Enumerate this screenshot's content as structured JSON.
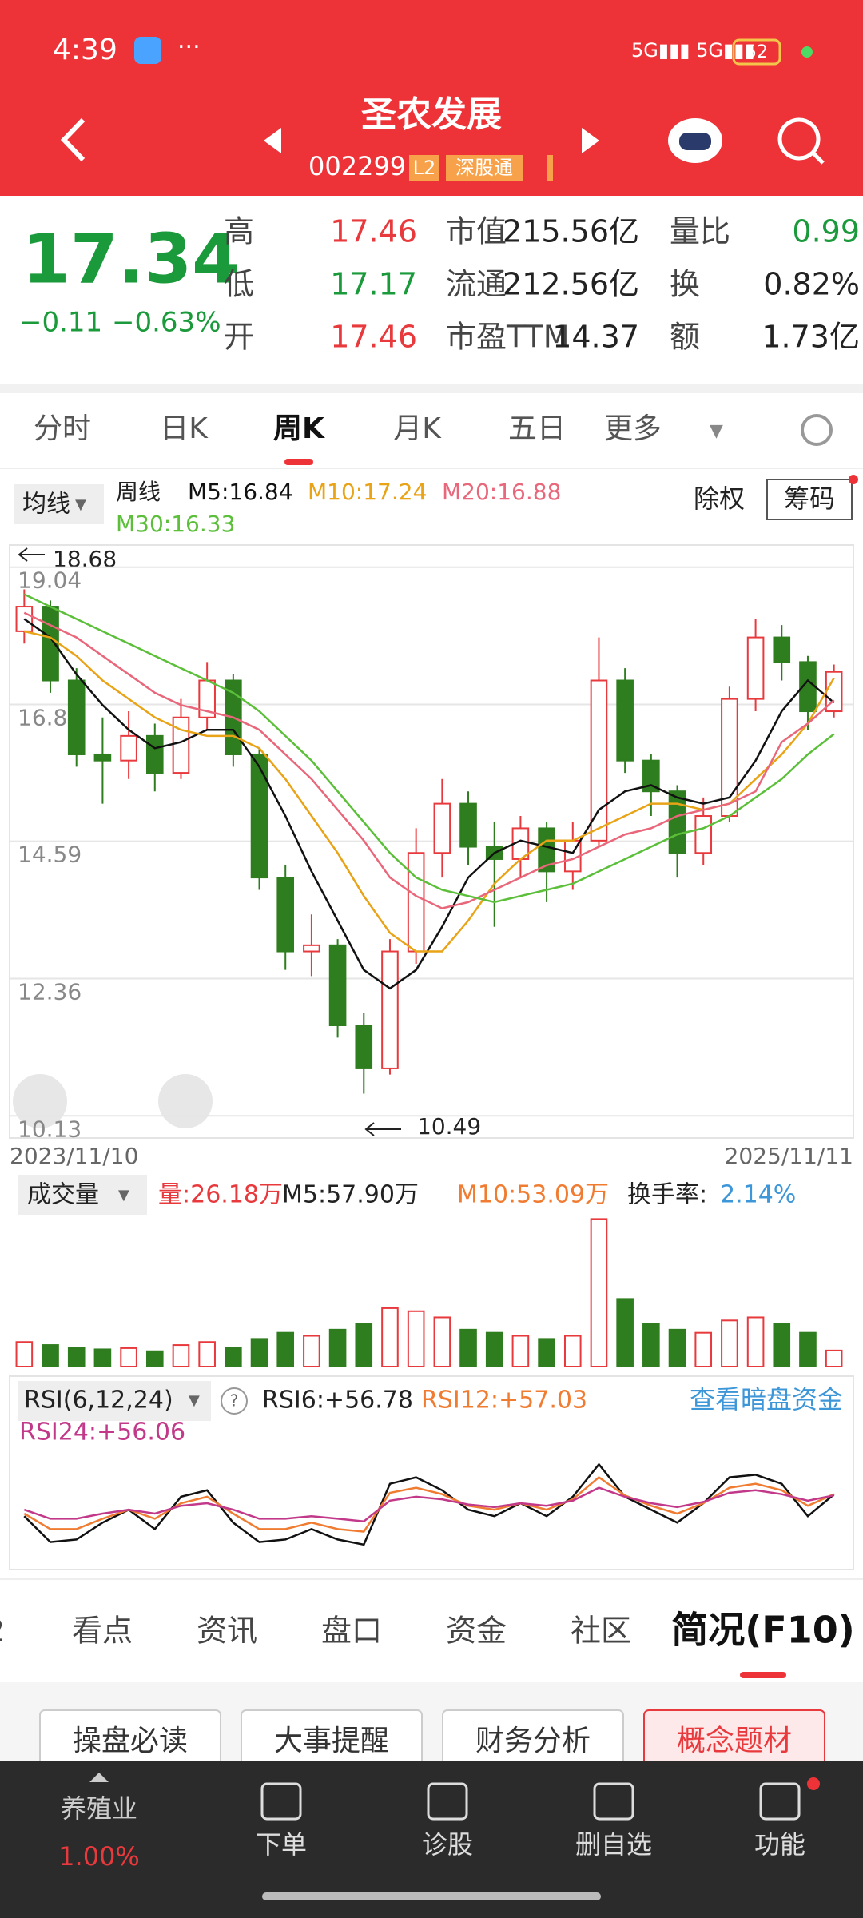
{
  "status_bar": {
    "time": "4:39",
    "battery": "52"
  },
  "header": {
    "name": "圣农发展",
    "code": "002299",
    "badges": [
      "L2",
      "深股通"
    ]
  },
  "quote": {
    "price": "17.34",
    "change": "−0.11",
    "change_pct": "−0.63%",
    "stats": [
      [
        "高",
        "17.46",
        "市值",
        "215.56亿",
        "量比",
        "0.99"
      ],
      [
        "低",
        "17.17",
        "流通",
        "212.56亿",
        "换",
        "0.82%"
      ],
      [
        "开",
        "17.46",
        "市盈TTM",
        "14.37",
        "额",
        "1.73亿"
      ]
    ]
  },
  "period_tabs": [
    "分时",
    "日K",
    "周K",
    "月K",
    "五日",
    "更多"
  ],
  "chart_data": [
    {
      "type": "candlestick",
      "ma_button": "均线",
      "period": "周线",
      "buttons": [
        "除权",
        "筹码"
      ],
      "ylim": [
        9.77,
        19.4
      ],
      "yticks": [
        19.04,
        16.81,
        14.59,
        12.36,
        10.13
      ],
      "grid": true,
      "x_labels": [
        "2023/11/10",
        "2025/11/11"
      ],
      "annotations": [
        "18.68",
        "10.49"
      ],
      "up_color": "#e8393d",
      "down_color": "#2e7d1e",
      "open": [
        18.0,
        18.4,
        17.2,
        16.0,
        15.9,
        16.3,
        15.7,
        16.6,
        17.2,
        16.0,
        14.0,
        12.8,
        12.9,
        11.6,
        10.9,
        12.8,
        14.4,
        15.2,
        14.5,
        14.3,
        14.8,
        14.1,
        14.6,
        17.2,
        15.9,
        15.4,
        14.4,
        15.0,
        16.9,
        17.9,
        17.5,
        16.7
      ],
      "high": [
        18.68,
        18.5,
        17.4,
        16.6,
        16.7,
        16.5,
        16.9,
        17.5,
        17.3,
        16.1,
        14.2,
        13.4,
        13.0,
        11.8,
        13.0,
        14.8,
        15.6,
        15.4,
        14.9,
        15.0,
        14.9,
        14.9,
        17.9,
        17.4,
        16.0,
        15.5,
        15.3,
        17.1,
        18.2,
        18.1,
        17.6,
        17.46
      ],
      "low": [
        17.8,
        17.0,
        15.8,
        15.2,
        15.6,
        15.4,
        15.6,
        16.4,
        15.8,
        13.8,
        12.5,
        12.4,
        11.4,
        10.49,
        10.8,
        12.6,
        14.0,
        14.2,
        13.2,
        14.0,
        13.6,
        13.8,
        14.5,
        15.7,
        15.0,
        14.0,
        14.2,
        14.9,
        16.7,
        17.2,
        16.4,
        16.6
      ],
      "close": [
        18.4,
        17.2,
        16.0,
        15.9,
        16.3,
        15.7,
        16.6,
        17.2,
        16.0,
        14.0,
        12.8,
        12.9,
        11.6,
        10.9,
        12.8,
        14.4,
        15.2,
        14.5,
        14.3,
        14.8,
        14.1,
        14.6,
        17.2,
        15.9,
        15.4,
        14.4,
        15.0,
        16.9,
        17.9,
        17.5,
        16.7,
        17.34
      ],
      "series": [
        {
          "name": "M5:16.84",
          "color": "#111111",
          "values": [
            18.2,
            17.9,
            17.3,
            16.8,
            16.4,
            16.1,
            16.2,
            16.4,
            16.4,
            15.8,
            15.0,
            14.1,
            13.3,
            12.5,
            12.2,
            12.5,
            13.2,
            14.0,
            14.4,
            14.6,
            14.5,
            14.4,
            15.1,
            15.4,
            15.5,
            15.3,
            15.2,
            15.3,
            15.9,
            16.7,
            17.2,
            16.84
          ]
        },
        {
          "name": "M10:17.24",
          "color": "#e8a317",
          "values": [
            18.0,
            17.9,
            17.6,
            17.2,
            16.9,
            16.6,
            16.4,
            16.3,
            16.3,
            16.1,
            15.6,
            15.0,
            14.4,
            13.7,
            13.1,
            12.8,
            12.8,
            13.3,
            13.9,
            14.3,
            14.6,
            14.6,
            14.8,
            15.0,
            15.2,
            15.2,
            15.1,
            15.2,
            15.6,
            16.0,
            16.5,
            17.24
          ]
        },
        {
          "name": "M20:16.88",
          "color": "#e8677a",
          "values": [
            18.3,
            18.1,
            17.9,
            17.6,
            17.3,
            17.0,
            16.8,
            16.7,
            16.6,
            16.4,
            16.0,
            15.6,
            15.1,
            14.6,
            14.0,
            13.7,
            13.5,
            13.6,
            13.8,
            14.0,
            14.2,
            14.3,
            14.5,
            14.7,
            14.8,
            15.0,
            15.1,
            15.2,
            15.4,
            16.2,
            16.5,
            16.88
          ]
        },
        {
          "name": "M30:16.33",
          "color": "#5cbf3a",
          "values": [
            18.6,
            18.4,
            18.2,
            18.0,
            17.8,
            17.6,
            17.4,
            17.2,
            17.0,
            16.7,
            16.3,
            15.9,
            15.4,
            14.9,
            14.4,
            14.0,
            13.8,
            13.7,
            13.6,
            13.7,
            13.8,
            13.9,
            14.1,
            14.3,
            14.5,
            14.7,
            14.8,
            15.0,
            15.3,
            15.6,
            16.0,
            16.33
          ]
        }
      ]
    },
    {
      "type": "bar",
      "title": "成交量",
      "ylim": [
        0,
        260
      ],
      "series": [
        {
          "name": "量:26.18万",
          "color": "#e8393d",
          "values": [
            40,
            35,
            30,
            28,
            30,
            25,
            35,
            40,
            30,
            45,
            55,
            50,
            60,
            70,
            95,
            90,
            80,
            60,
            55,
            50,
            45,
            50,
            240,
            110,
            70,
            60,
            55,
            75,
            80,
            70,
            55,
            26.18
          ]
        }
      ],
      "legend_extra": [
        "M5:57.90万",
        "M10:53.09万"
      ],
      "turnover_label": "换手率:",
      "turnover_value": "2.14%"
    },
    {
      "type": "line",
      "title": "RSI(6,12,24)",
      "link": "查看暗盘资金",
      "ylim": [
        0,
        100
      ],
      "series": [
        {
          "name": "RSI6:+56.78",
          "color": "#111111",
          "values": [
            40,
            20,
            22,
            35,
            45,
            30,
            55,
            60,
            35,
            20,
            22,
            30,
            22,
            18,
            65,
            70,
            60,
            45,
            40,
            50,
            40,
            55,
            80,
            55,
            45,
            35,
            50,
            70,
            72,
            65,
            40,
            56.78
          ]
        },
        {
          "name": "RSI12:+57.03",
          "color": "#f07c32",
          "values": [
            42,
            30,
            30,
            38,
            45,
            38,
            50,
            55,
            42,
            30,
            30,
            35,
            30,
            28,
            58,
            62,
            57,
            48,
            45,
            50,
            45,
            53,
            70,
            56,
            48,
            42,
            50,
            62,
            65,
            60,
            48,
            57.03
          ]
        },
        {
          "name": "RSI24:+56.06",
          "color": "#c2398a",
          "values": [
            45,
            38,
            38,
            42,
            45,
            42,
            48,
            50,
            45,
            38,
            38,
            40,
            38,
            36,
            52,
            55,
            53,
            49,
            47,
            50,
            48,
            52,
            62,
            55,
            50,
            47,
            51,
            58,
            60,
            57,
            52,
            56.06
          ]
        }
      ]
    }
  ],
  "info_tabs": [
    "2",
    "看点",
    "资讯",
    "盘口",
    "资金",
    "社区",
    "简况(F10)"
  ],
  "info_buttons": [
    "操盘必读",
    "大事提醒",
    "财务分析",
    "概念题材"
  ],
  "bottom_nav": {
    "sector": "养殖业",
    "sector_change": "1.00%",
    "items": [
      "下单",
      "诊股",
      "删自选",
      "功能"
    ]
  }
}
